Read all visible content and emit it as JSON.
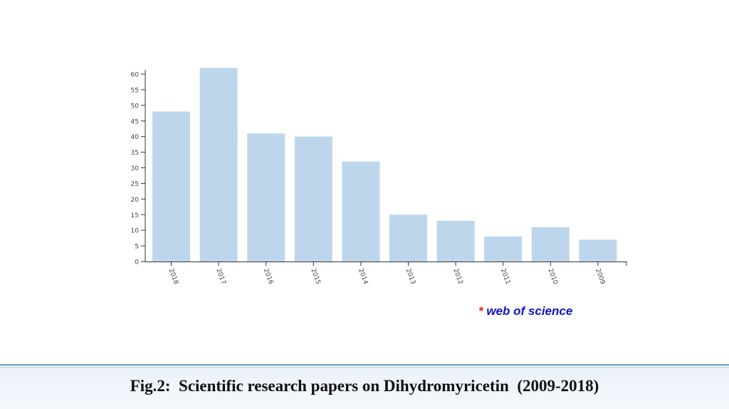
{
  "chart_data": {
    "type": "bar",
    "categories": [
      "2018",
      "2017",
      "2016",
      "2015",
      "2014",
      "2013",
      "2012",
      "2011",
      "2010",
      "2009"
    ],
    "values": [
      48,
      62,
      41,
      40,
      32,
      15,
      13,
      8,
      11,
      7
    ],
    "ylim": [
      0,
      60
    ],
    "yticks": [
      "0",
      "5",
      "10",
      "15",
      "20",
      "25",
      "30",
      "35",
      "40",
      "45",
      "50",
      "55",
      "60"
    ],
    "bar_color": "#bdd6ec",
    "grid": false,
    "legend": "none"
  },
  "source_note": {
    "star": "*",
    "text": "web of science"
  },
  "caption": "Fig.2:  Scientific research papers on Dihydromyricetin  (2009-2018)"
}
